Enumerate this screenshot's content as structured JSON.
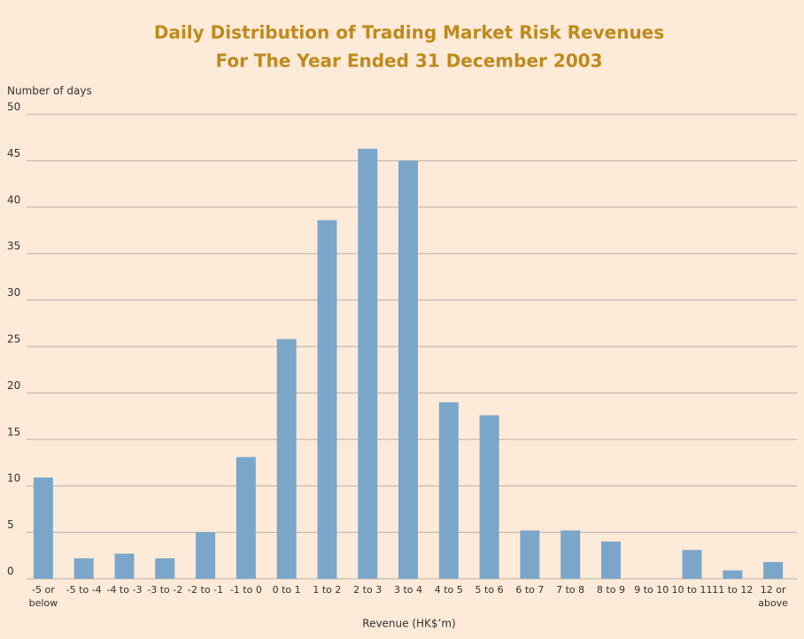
{
  "chart_data": {
    "type": "bar",
    "title": "Daily Distribution of Trading Market Risk Revenues",
    "subtitle": "For The Year Ended 31 December 2003",
    "y_label": "Number of days",
    "x_label": "Revenue (HK$’m)",
    "categories": [
      "-5 or\nbelow",
      "-5 to -4",
      "-4 to -3",
      "-3 to -2",
      "-2 to -1",
      "-1 to 0",
      "0 to 1",
      "1 to 2",
      "2 to 3",
      "3 to 4",
      "4 to 5",
      "5 to 6",
      "6 to 7",
      "7 to 8",
      "8 to 9",
      "9 to 10",
      "10 to 11",
      "11 to 12",
      "12 or\nabove"
    ],
    "values": [
      10.9,
      2.2,
      2.7,
      2.2,
      5.0,
      13.1,
      25.8,
      38.6,
      46.3,
      45.0,
      19.0,
      17.6,
      5.2,
      5.2,
      4.0,
      0,
      3.1,
      0.9,
      1.8
    ],
    "color": "#7ba6c9",
    "ylim": [
      0,
      50
    ],
    "yticks": [
      0,
      5,
      10,
      15,
      20,
      25,
      30,
      35,
      40,
      45,
      50
    ],
    "grid": true
  }
}
